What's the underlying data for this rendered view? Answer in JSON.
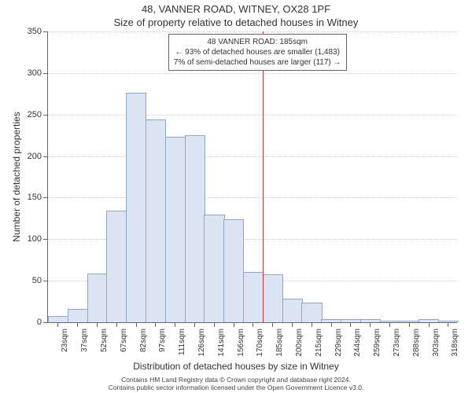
{
  "title_main": "48, VANNER ROAD, WITNEY, OX28 1PF",
  "title_sub": "Size of property relative to detached houses in Witney",
  "y_axis_title": "Number of detached properties",
  "x_axis_title": "Distribution of detached houses by size in Witney",
  "footer_line1": "Contains HM Land Registry data © Crown copyright and database right 2024.",
  "footer_line2": "Contains public sector information licensed under the Open Government Licence v3.0.",
  "chart": {
    "type": "histogram",
    "ylim": [
      0,
      350
    ],
    "ytick_step": 50,
    "bar_fill": "#dae4f2",
    "bar_stroke": "#8fa6c8",
    "background": "#ffffff",
    "grid_color": "#cccccc",
    "axis_color": "#666666",
    "bar_width": 24.8,
    "categories": [
      "23sqm",
      "37sqm",
      "52sqm",
      "67sqm",
      "82sqm",
      "97sqm",
      "111sqm",
      "126sqm",
      "141sqm",
      "156sqm",
      "170sqm",
      "185sqm",
      "200sqm",
      "215sqm",
      "229sqm",
      "244sqm",
      "259sqm",
      "273sqm",
      "288sqm",
      "303sqm",
      "318sqm"
    ],
    "values": [
      7,
      15,
      58,
      133,
      275,
      243,
      222,
      224,
      129,
      123,
      60,
      57,
      27,
      23,
      3,
      3,
      3,
      1,
      1,
      3,
      1
    ],
    "marker": {
      "index_after": 11,
      "color": "#cc3333"
    }
  },
  "annotation": {
    "line1": "48 VANNER ROAD: 185sqm",
    "line2": "← 93% of detached houses are smaller (1,483)",
    "line3": "7% of semi-detached houses are larger (117) →"
  }
}
